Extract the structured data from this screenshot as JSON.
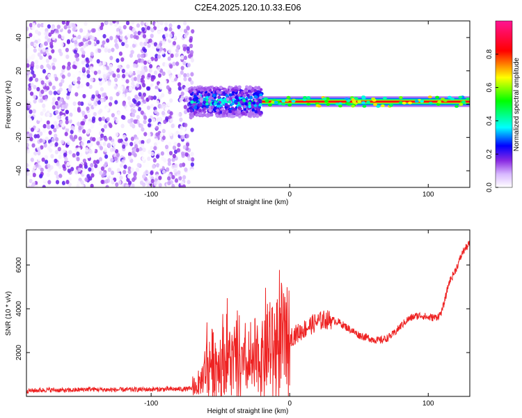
{
  "figure": {
    "title": "C2E4.2025.120.10.33.E06"
  },
  "chart_data": [
    {
      "type": "heatmap",
      "xlabel": "Height of straight line (km)",
      "ylabel": "Frequency (Hz)",
      "xlim": [
        -190,
        130
      ],
      "ylim": [
        -50,
        50
      ],
      "xticks": [
        -100,
        0,
        100
      ],
      "yticks": [
        -40,
        -20,
        0,
        20,
        40
      ],
      "grid": false,
      "colorbar": {
        "label": "Normalized spectral amplitude",
        "range": [
          0.0,
          1.0
        ],
        "ticks": [
          0.0,
          0.2,
          0.4,
          0.6,
          0.8
        ],
        "colormap": "rainbow",
        "colors": [
          "#ffffff",
          "#9b30ff",
          "#0000ff",
          "#00ffff",
          "#00ff00",
          "#ffff00",
          "#ff0000",
          "#ff1493"
        ]
      },
      "regions": [
        {
          "x_range": [
            -190,
            -70
          ],
          "frequency_range": [
            -50,
            50
          ],
          "amplitude": [
            0.0,
            0.2
          ],
          "pattern": "scattered noise"
        },
        {
          "x_range": [
            -72,
            -20
          ],
          "frequency_range": [
            -8,
            10
          ],
          "amplitude": [
            0.1,
            0.5
          ],
          "pattern": "broadened signal"
        },
        {
          "x_range": [
            -20,
            130
          ],
          "frequency_center": 1.5,
          "frequency_width": 4,
          "amplitude": [
            0.6,
            1.0
          ],
          "pattern": "narrow line"
        }
      ]
    },
    {
      "type": "line",
      "xlabel": "Height of straight line (km)",
      "ylabel": "SNR (10 * v/v)",
      "xlim": [
        -190,
        130
      ],
      "ylim": [
        0,
        7600
      ],
      "xticks": [
        -100,
        0,
        100
      ],
      "yticks": [
        2000,
        4000,
        6000
      ],
      "grid": false,
      "color": "#ee2222",
      "series": [
        {
          "x": [
            -190,
            -175,
            -160,
            -145,
            -130,
            -115,
            -100,
            -85,
            -72,
            -65,
            -60,
            -55,
            -50,
            -45,
            -40,
            -35,
            -30,
            -25,
            -20,
            -15,
            -10,
            -5,
            0,
            5,
            10,
            15,
            20,
            25,
            30,
            35,
            40,
            45,
            50,
            55,
            60,
            65,
            70,
            75,
            80,
            85,
            90,
            95,
            100,
            105,
            108,
            110,
            112,
            115,
            120,
            125,
            130
          ],
          "values": [
            250,
            300,
            270,
            330,
            300,
            310,
            320,
            330,
            340,
            500,
            1500,
            1700,
            1400,
            1800,
            1600,
            1400,
            1300,
            1400,
            1800,
            2100,
            2300,
            2500,
            2700,
            2850,
            3050,
            3250,
            3400,
            3500,
            3500,
            3400,
            3200,
            3000,
            2800,
            2700,
            2600,
            2550,
            2650,
            2850,
            3200,
            3500,
            3650,
            3700,
            3600,
            3600,
            3700,
            3900,
            4400,
            5200,
            5800,
            6600,
            7000
          ]
        }
      ]
    }
  ]
}
